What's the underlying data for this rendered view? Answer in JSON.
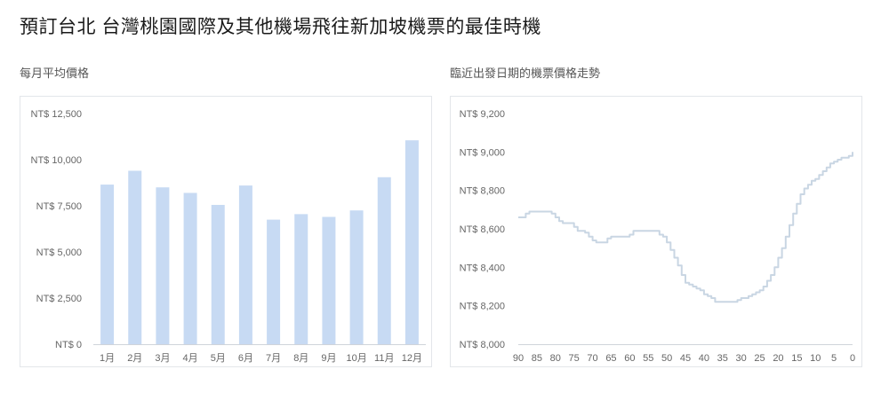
{
  "page": {
    "title": "預訂台北 台灣桃園國際及其他機場飛往新加坡機票的最佳時機"
  },
  "chart_data": [
    {
      "type": "bar",
      "title": "每月平均價格",
      "categories": [
        "1月",
        "2月",
        "3月",
        "4月",
        "5月",
        "6月",
        "7月",
        "8月",
        "9月",
        "10月",
        "11月",
        "12月"
      ],
      "values": [
        8650,
        9400,
        8500,
        8200,
        7550,
        8600,
        6750,
        7050,
        6900,
        7250,
        9050,
        11050
      ],
      "ylim": [
        0,
        12500
      ],
      "yticks": [
        0,
        2500,
        5000,
        7500,
        10000,
        12500
      ],
      "ytick_labels": [
        "NT$ 0",
        "NT$ 2,500",
        "NT$ 5,000",
        "NT$ 7,500",
        "NT$ 10,000",
        "NT$ 12,500"
      ],
      "grid": false,
      "color": "#c7daf3"
    },
    {
      "type": "line",
      "title": "臨近出發日期的機票價格走勢",
      "x": [
        90,
        89,
        88,
        87,
        86,
        85,
        84,
        83,
        82,
        81,
        80,
        79,
        78,
        77,
        76,
        75,
        74,
        73,
        72,
        71,
        70,
        69,
        68,
        67,
        66,
        65,
        64,
        63,
        62,
        61,
        60,
        59,
        58,
        57,
        56,
        55,
        54,
        53,
        52,
        51,
        50,
        49,
        48,
        47,
        46,
        45,
        44,
        43,
        42,
        41,
        40,
        39,
        38,
        37,
        36,
        35,
        34,
        33,
        32,
        31,
        30,
        29,
        28,
        27,
        26,
        25,
        24,
        23,
        22,
        21,
        20,
        19,
        18,
        17,
        16,
        15,
        14,
        13,
        12,
        11,
        10,
        9,
        8,
        7,
        6,
        5,
        4,
        3,
        2,
        1,
        0
      ],
      "y": [
        8660,
        8660,
        8680,
        8690,
        8690,
        8690,
        8690,
        8690,
        8690,
        8680,
        8660,
        8640,
        8630,
        8630,
        8630,
        8610,
        8590,
        8590,
        8580,
        8560,
        8540,
        8530,
        8530,
        8530,
        8550,
        8560,
        8560,
        8560,
        8560,
        8560,
        8570,
        8590,
        8590,
        8590,
        8590,
        8590,
        8590,
        8590,
        8570,
        8560,
        8530,
        8490,
        8450,
        8410,
        8360,
        8320,
        8310,
        8300,
        8290,
        8280,
        8260,
        8250,
        8240,
        8220,
        8220,
        8220,
        8220,
        8220,
        8220,
        8230,
        8240,
        8240,
        8250,
        8260,
        8270,
        8280,
        8300,
        8330,
        8360,
        8400,
        8450,
        8500,
        8560,
        8620,
        8680,
        8730,
        8780,
        8810,
        8830,
        8850,
        8860,
        8880,
        8900,
        8920,
        8940,
        8950,
        8960,
        8970,
        8970,
        8980,
        9000
      ],
      "ylim": [
        8000,
        9200
      ],
      "yticks": [
        8000,
        8200,
        8400,
        8600,
        8800,
        9000,
        9200
      ],
      "ytick_labels": [
        "NT$ 8,000",
        "NT$ 8,200",
        "NT$ 8,400",
        "NT$ 8,600",
        "NT$ 8,800",
        "NT$ 9,000",
        "NT$ 9,200"
      ],
      "xticks": [
        90,
        85,
        80,
        75,
        70,
        65,
        60,
        55,
        50,
        45,
        40,
        35,
        30,
        25,
        20,
        15,
        10,
        5,
        0
      ],
      "xtick_labels": [
        "90",
        "85",
        "80",
        "75",
        "70",
        "65",
        "60",
        "55",
        "50",
        "45",
        "40",
        "35",
        "30",
        "25",
        "20",
        "15",
        "10",
        "5",
        "0"
      ],
      "grid": false,
      "color": "#c9d6e3"
    }
  ]
}
